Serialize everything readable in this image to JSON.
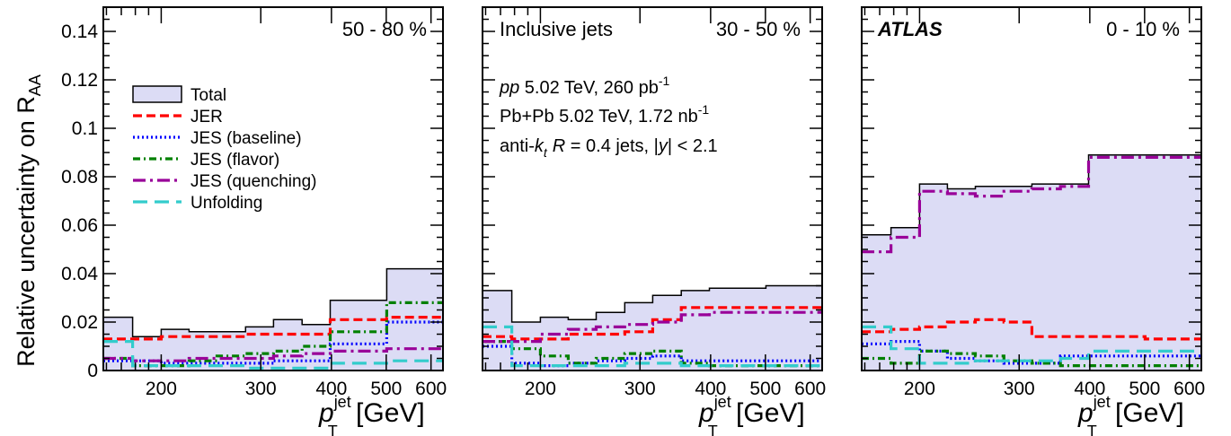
{
  "figure": {
    "ylabel": "Relative uncertainty on R",
    "ylabel_sub": "AA",
    "experiment": "ATLAS",
    "corner_labels": [
      "50 - 80 %",
      "30 - 50 %",
      "0 - 10 %"
    ],
    "info_lines": {
      "title": "Inclusive jets",
      "pp": {
        "italic": "pp",
        "text": " 5.02 TeV, 260 pb",
        "sup": "-1"
      },
      "pbpb": {
        "text": "Pb+Pb 5.02 TeV, 1.72 nb",
        "sup": "-1"
      },
      "jets": {
        "pre": "anti-",
        "k": "k",
        "ksub": "t",
        "R": "R",
        "mid": " = 0.4 jets, |",
        "y": "y",
        "post": "| < 2.1"
      }
    },
    "xlabel": {
      "p": "p",
      "sup": "jet",
      "sub": "T",
      "unit": " [GeV]"
    },
    "xticks": [
      "200",
      "300",
      "400",
      "500",
      "600"
    ],
    "yticks": [
      "0",
      "0.02",
      "0.04",
      "0.06",
      "0.08",
      "0.1",
      "0.12",
      "0.14"
    ],
    "legend": [
      {
        "label": "Total",
        "color": "#dcdcf5",
        "style": "box"
      },
      {
        "label": "JER",
        "color": "#ff0000",
        "style": "dashed"
      },
      {
        "label": "JES (baseline)",
        "color": "#0000ff",
        "style": "dotted"
      },
      {
        "label": "JES (flavor)",
        "color": "#008000",
        "style": "dashdot"
      },
      {
        "label": "JES (quenching)",
        "color": "#990099",
        "style": "dashdot-long"
      },
      {
        "label": "Unfolding",
        "color": "#33cccc",
        "style": "long-dash"
      }
    ]
  },
  "chart_data": [
    {
      "type": "area",
      "title": "50 - 80 %",
      "xlabel": "p_T^jet [GeV]",
      "ylabel": "Relative uncertainty on R_AA",
      "xscale": "log",
      "xlim": [
        158,
        630
      ],
      "ylim": [
        0,
        0.15
      ],
      "x_edges": [
        158,
        178,
        200,
        224,
        251,
        282,
        316,
        355,
        398,
        501,
        630
      ],
      "series": [
        {
          "name": "Total",
          "values": [
            0.022,
            0.014,
            0.017,
            0.016,
            0.016,
            0.018,
            0.021,
            0.019,
            0.029,
            0.042
          ]
        },
        {
          "name": "JER",
          "values": [
            0.013,
            0.013,
            0.014,
            0.014,
            0.014,
            0.015,
            0.015,
            0.015,
            0.021,
            0.022
          ]
        },
        {
          "name": "JES (baseline)",
          "values": [
            0.004,
            0.004,
            0.003,
            0.003,
            0.003,
            0.003,
            0.004,
            0.004,
            0.011,
            0.02
          ]
        },
        {
          "name": "JES (flavor)",
          "values": [
            0.005,
            0.002,
            0.002,
            0.004,
            0.006,
            0.007,
            0.008,
            0.01,
            0.016,
            0.028
          ]
        },
        {
          "name": "JES (quenching)",
          "values": [
            0.005,
            0.004,
            0.004,
            0.005,
            0.005,
            0.005,
            0.006,
            0.007,
            0.008,
            0.009
          ]
        },
        {
          "name": "Unfolding",
          "values": [
            0.012,
            0.002,
            0.002,
            0.002,
            0.002,
            0.001,
            0.001,
            0.001,
            0.003,
            0.004
          ]
        }
      ]
    },
    {
      "type": "area",
      "title": "30 - 50 %",
      "xlabel": "p_T^jet [GeV]",
      "xscale": "log",
      "xlim": [
        158,
        630
      ],
      "ylim": [
        0,
        0.15
      ],
      "x_edges": [
        158,
        178,
        200,
        224,
        251,
        282,
        316,
        355,
        398,
        501,
        630
      ],
      "series": [
        {
          "name": "Total",
          "values": [
            0.033,
            0.02,
            0.022,
            0.021,
            0.024,
            0.028,
            0.031,
            0.033,
            0.034,
            0.035
          ]
        },
        {
          "name": "JER",
          "values": [
            0.014,
            0.013,
            0.013,
            0.015,
            0.015,
            0.016,
            0.021,
            0.026,
            0.026,
            0.026
          ]
        },
        {
          "name": "JES (baseline)",
          "values": [
            0.01,
            0.003,
            0.002,
            0.003,
            0.004,
            0.005,
            0.006,
            0.004,
            0.004,
            0.004
          ]
        },
        {
          "name": "JES (flavor)",
          "values": [
            0.012,
            0.009,
            0.006,
            0.003,
            0.005,
            0.007,
            0.008,
            0.003,
            0.002,
            0.002
          ]
        },
        {
          "name": "JES (quenching)",
          "values": [
            0.012,
            0.012,
            0.015,
            0.017,
            0.018,
            0.019,
            0.02,
            0.023,
            0.024,
            0.024
          ]
        },
        {
          "name": "Unfolding",
          "values": [
            0.018,
            0.002,
            0.002,
            0.002,
            0.002,
            0.003,
            0.003,
            0.002,
            0.002,
            0.002
          ]
        }
      ]
    },
    {
      "type": "area",
      "title": "0 - 10 %",
      "xlabel": "p_T^jet [GeV]",
      "xscale": "log",
      "xlim": [
        158,
        630
      ],
      "ylim": [
        0,
        0.15
      ],
      "x_edges": [
        158,
        178,
        200,
        224,
        251,
        282,
        316,
        355,
        398,
        501,
        630
      ],
      "series": [
        {
          "name": "Total",
          "values": [
            0.056,
            0.059,
            0.077,
            0.075,
            0.076,
            0.076,
            0.077,
            0.077,
            0.089,
            0.089
          ]
        },
        {
          "name": "JER",
          "values": [
            0.016,
            0.017,
            0.018,
            0.02,
            0.021,
            0.02,
            0.014,
            0.014,
            0.014,
            0.013
          ]
        },
        {
          "name": "JES (baseline)",
          "values": [
            0.011,
            0.012,
            0.008,
            0.005,
            0.004,
            0.003,
            0.003,
            0.006,
            0.006,
            0.006
          ]
        },
        {
          "name": "JES (flavor)",
          "values": [
            0.005,
            0.003,
            0.008,
            0.007,
            0.006,
            0.004,
            0.003,
            0.002,
            0.002,
            0.002
          ]
        },
        {
          "name": "JES (quenching)",
          "values": [
            0.049,
            0.055,
            0.074,
            0.073,
            0.072,
            0.074,
            0.075,
            0.076,
            0.088,
            0.088
          ]
        },
        {
          "name": "Unfolding",
          "values": [
            0.018,
            0.009,
            0.003,
            0.003,
            0.004,
            0.004,
            0.004,
            0.005,
            0.008,
            0.008
          ]
        }
      ]
    }
  ]
}
